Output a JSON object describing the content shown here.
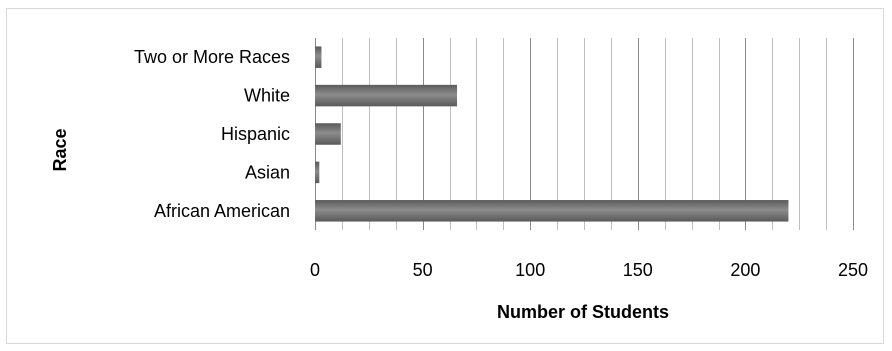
{
  "chart_data": {
    "type": "bar",
    "orientation": "horizontal",
    "title": "",
    "xlabel": "Number of Students",
    "ylabel": "Race",
    "categories": [
      "African American",
      "Asian",
      "Hispanic",
      "White",
      "Two or More Races"
    ],
    "values": [
      220,
      2,
      12,
      66,
      3
    ],
    "xlim": [
      0,
      250
    ],
    "xticks": [
      0,
      50,
      100,
      150,
      200,
      250
    ],
    "minor_grid_step": 12.5,
    "grid": true,
    "legend": "none",
    "bar_color": "#5a5a5a",
    "bar_highlight": "#8c8c8c"
  }
}
